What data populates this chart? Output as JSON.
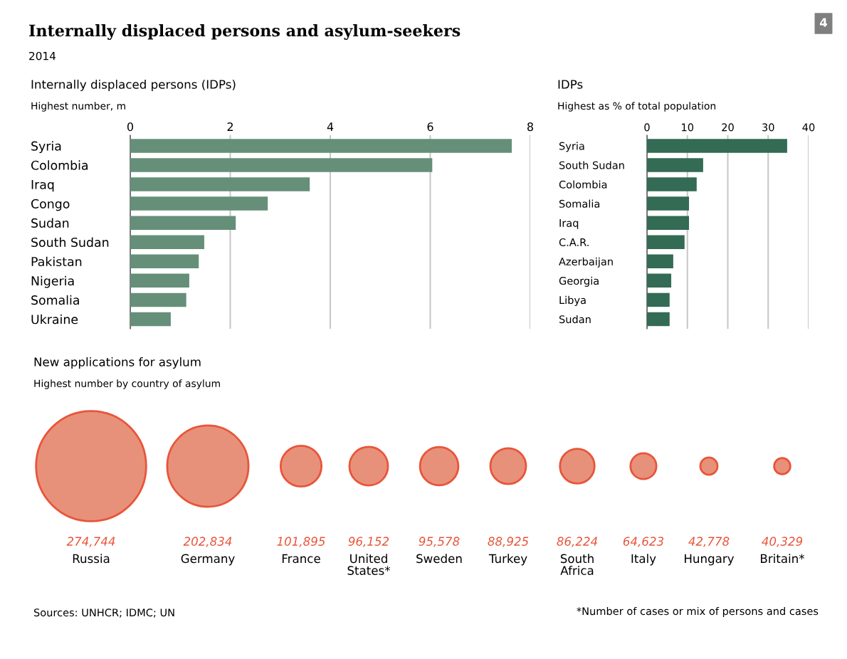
{
  "chart_data": [
    {
      "type": "other",
      "title": "Internally displaced persons and asylum-seekers",
      "subtitle": "2014",
      "annotations": [
        "4",
        "Sources: UNHCR; IDMC; UN",
        "*Number of cases or mix of persons and cases"
      ]
    },
    {
      "type": "bar",
      "orientation": "horizontal",
      "title": "Internally displaced persons (IDPs)",
      "subtitle": "Highest number, m",
      "categories": [
        "Syria",
        "Colombia",
        "Iraq",
        "Congo",
        "Sudan",
        "South Sudan",
        "Pakistan",
        "Nigeria",
        "Somalia",
        "Ukraine"
      ],
      "values": [
        7.63,
        6.04,
        3.59,
        2.75,
        2.11,
        1.48,
        1.37,
        1.18,
        1.12,
        0.81
      ],
      "color": "#658f79",
      "xlim": [
        0,
        8
      ],
      "xticks": [
        0,
        2,
        4,
        6,
        8
      ],
      "grid": "x"
    },
    {
      "type": "bar",
      "orientation": "horizontal",
      "title": "IDPs",
      "subtitle": "Highest as % of total population",
      "categories": [
        "Syria",
        "South Sudan",
        "Colombia",
        "Somalia",
        "Iraq",
        "C.A.R.",
        "Azerbaijan",
        "Georgia",
        "Libya",
        "Sudan"
      ],
      "values": [
        34.7,
        13.9,
        12.3,
        10.4,
        10.4,
        9.3,
        6.5,
        6.0,
        5.6,
        5.6
      ],
      "color": "#336b55",
      "xlim": [
        0,
        40
      ],
      "xticks": [
        0,
        10,
        20,
        30,
        40
      ],
      "grid": "x"
    },
    {
      "type": "other",
      "title": "New applications for asylum",
      "subtitle": "Highest number by country of asylum",
      "categories": [
        "Russia",
        "Germany",
        "France",
        "United\nStates*",
        "Sweden",
        "Turkey",
        "South\nAfrica",
        "Italy",
        "Hungary",
        "Britain*"
      ],
      "values": [
        274744,
        202834,
        101895,
        96152,
        95578,
        88925,
        86224,
        64623,
        42778,
        40329
      ],
      "value_labels": [
        "274,744",
        "202,834",
        "101,895",
        "96,152",
        "95,578",
        "88,925",
        "86,224",
        "64,623",
        "42,778",
        "40,329"
      ],
      "color": "#e8917a"
    }
  ]
}
